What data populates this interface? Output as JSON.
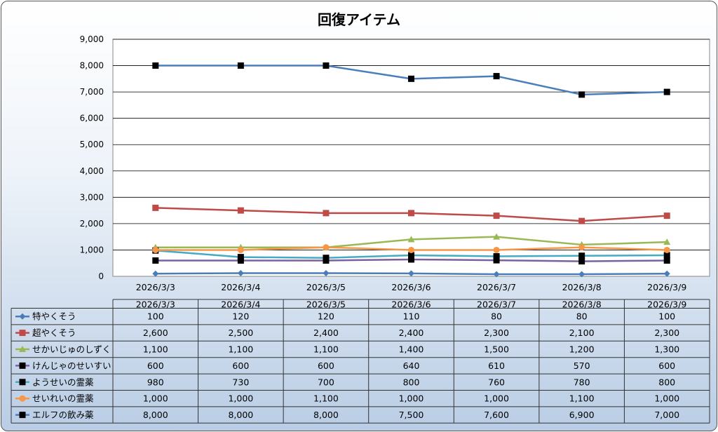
{
  "chart_data": {
    "type": "line",
    "title": "回復アイテム",
    "xlabel": "",
    "ylabel": "",
    "ylim": [
      0,
      9000
    ],
    "yticks": [
      "0",
      "1,000",
      "2,000",
      "3,000",
      "4,000",
      "5,000",
      "6,000",
      "7,000",
      "8,000",
      "9,000"
    ],
    "grid": true,
    "legend": "data-table",
    "categories": [
      "2026/3/3",
      "2026/3/4",
      "2026/3/5",
      "2026/3/6",
      "2026/3/7",
      "2026/3/8",
      "2026/3/9"
    ],
    "series": [
      {
        "name": "特やくそう",
        "color": "#4a7ebb",
        "marker": "diamond",
        "markerColor": "#4a7ebb",
        "values": [
          100,
          120,
          120,
          110,
          80,
          80,
          100
        ],
        "labels": [
          "100",
          "120",
          "120",
          "110",
          "80",
          "80",
          "100"
        ]
      },
      {
        "name": "超やくそう",
        "color": "#be4b48",
        "marker": "square",
        "markerColor": "#be4b48",
        "values": [
          2600,
          2500,
          2400,
          2400,
          2300,
          2100,
          2300
        ],
        "labels": [
          "2,600",
          "2,500",
          "2,400",
          "2,400",
          "2,300",
          "2,100",
          "2,300"
        ]
      },
      {
        "name": "せかいじゅのしずく",
        "color": "#98b954",
        "marker": "triangle",
        "markerColor": "#98b954",
        "values": [
          1100,
          1100,
          1100,
          1400,
          1500,
          1200,
          1300
        ],
        "labels": [
          "1,100",
          "1,100",
          "1,100",
          "1,400",
          "1,500",
          "1,200",
          "1,300"
        ]
      },
      {
        "name": "けんじゃのせいすい",
        "color": "#7d60a0",
        "marker": "square",
        "markerColor": "#000000",
        "values": [
          600,
          600,
          600,
          640,
          610,
          570,
          600
        ],
        "labels": [
          "600",
          "600",
          "600",
          "640",
          "610",
          "570",
          "600"
        ]
      },
      {
        "name": "ようせいの霊薬",
        "color": "#46aac5",
        "marker": "square",
        "markerColor": "#000000",
        "values": [
          980,
          730,
          700,
          800,
          760,
          780,
          800
        ],
        "labels": [
          "980",
          "730",
          "700",
          "800",
          "760",
          "780",
          "800"
        ]
      },
      {
        "name": "せいれいの霊薬",
        "color": "#f79646",
        "marker": "circle",
        "markerColor": "#f79646",
        "values": [
          1000,
          1000,
          1100,
          1000,
          1000,
          1100,
          1000
        ],
        "labels": [
          "1,000",
          "1,000",
          "1,100",
          "1,000",
          "1,000",
          "1,100",
          "1,000"
        ]
      },
      {
        "name": "エルフの飲み薬",
        "color": "#4a7ebb",
        "marker": "square",
        "markerColor": "#000000",
        "values": [
          8000,
          8000,
          8000,
          7500,
          7600,
          6900,
          7000
        ],
        "labels": [
          "8,000",
          "8,000",
          "8,000",
          "7,500",
          "7,600",
          "6,900",
          "7,000"
        ]
      }
    ]
  }
}
